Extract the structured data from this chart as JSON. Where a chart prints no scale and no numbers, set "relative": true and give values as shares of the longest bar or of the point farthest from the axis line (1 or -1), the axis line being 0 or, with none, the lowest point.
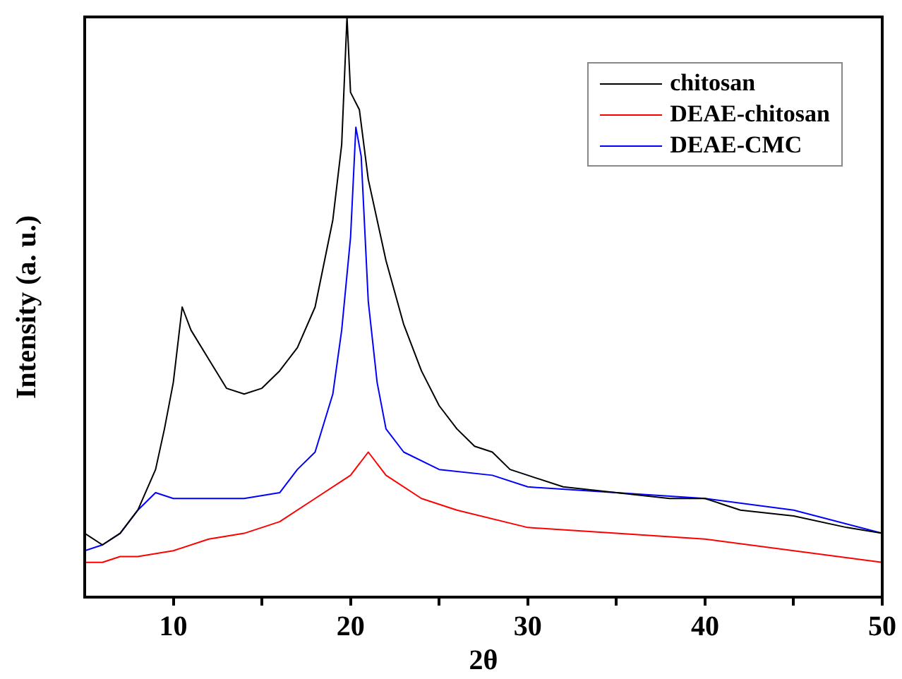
{
  "chart_data": {
    "type": "line",
    "xlabel": "2θ",
    "ylabel": "Intensity (a. u.)",
    "relative": true,
    "xlim": [
      5,
      50
    ],
    "xticks": [
      10,
      {
        "value": 15,
        "label": null
      },
      20,
      {
        "value": 25,
        "label": null
      },
      30,
      {
        "value": 35,
        "label": null
      },
      40,
      {
        "value": 45,
        "label": null
      },
      50
    ],
    "grid": false,
    "legend": "top right",
    "marker": "none",
    "line_style": "solid",
    "series": [
      {
        "name": "chitosan",
        "color": "#000000",
        "x": [
          5,
          6,
          7,
          8,
          9,
          9.5,
          10,
          10.5,
          11,
          12,
          13,
          14,
          15,
          16,
          17,
          18,
          19,
          19.5,
          19.8,
          20,
          20.5,
          21,
          22,
          23,
          24,
          25,
          26,
          27,
          28,
          29,
          30,
          32,
          35,
          38,
          40,
          42,
          45,
          48,
          50
        ],
        "values": [
          0.11,
          0.09,
          0.11,
          0.15,
          0.22,
          0.29,
          0.37,
          0.5,
          0.46,
          0.41,
          0.36,
          0.35,
          0.36,
          0.39,
          0.43,
          0.5,
          0.65,
          0.78,
          1,
          0.87,
          0.84,
          0.72,
          0.58,
          0.47,
          0.39,
          0.33,
          0.29,
          0.26,
          0.25,
          0.22,
          0.21,
          0.19,
          0.18,
          0.17,
          0.17,
          0.15,
          0.14,
          0.12,
          0.11
        ]
      },
      {
        "name": "DEAE-chitosan",
        "color": "#ff0000",
        "x": [
          5,
          6,
          7,
          8,
          10,
          12,
          14,
          16,
          18,
          20,
          21,
          22,
          24,
          26,
          30,
          35,
          40,
          45,
          50
        ],
        "values": [
          0.06,
          0.06,
          0.07,
          0.07,
          0.08,
          0.1,
          0.11,
          0.13,
          0.17,
          0.21,
          0.25,
          0.21,
          0.17,
          0.15,
          0.12,
          0.11,
          0.1,
          0.08,
          0.06
        ]
      },
      {
        "name": "DEAE-CMC",
        "color": "#0000ff",
        "x": [
          5,
          6,
          7,
          8,
          9,
          10,
          12,
          14,
          16,
          17,
          18,
          19,
          19.5,
          20,
          20.3,
          20.6,
          21,
          21.5,
          22,
          23,
          25,
          28,
          30,
          35,
          40,
          45,
          50
        ],
        "values": [
          0.08,
          0.09,
          0.11,
          0.15,
          0.18,
          0.17,
          0.17,
          0.17,
          0.18,
          0.22,
          0.25,
          0.35,
          0.46,
          0.62,
          0.81,
          0.76,
          0.51,
          0.37,
          0.29,
          0.25,
          0.22,
          0.21,
          0.19,
          0.18,
          0.17,
          0.15,
          0.11
        ]
      }
    ]
  }
}
